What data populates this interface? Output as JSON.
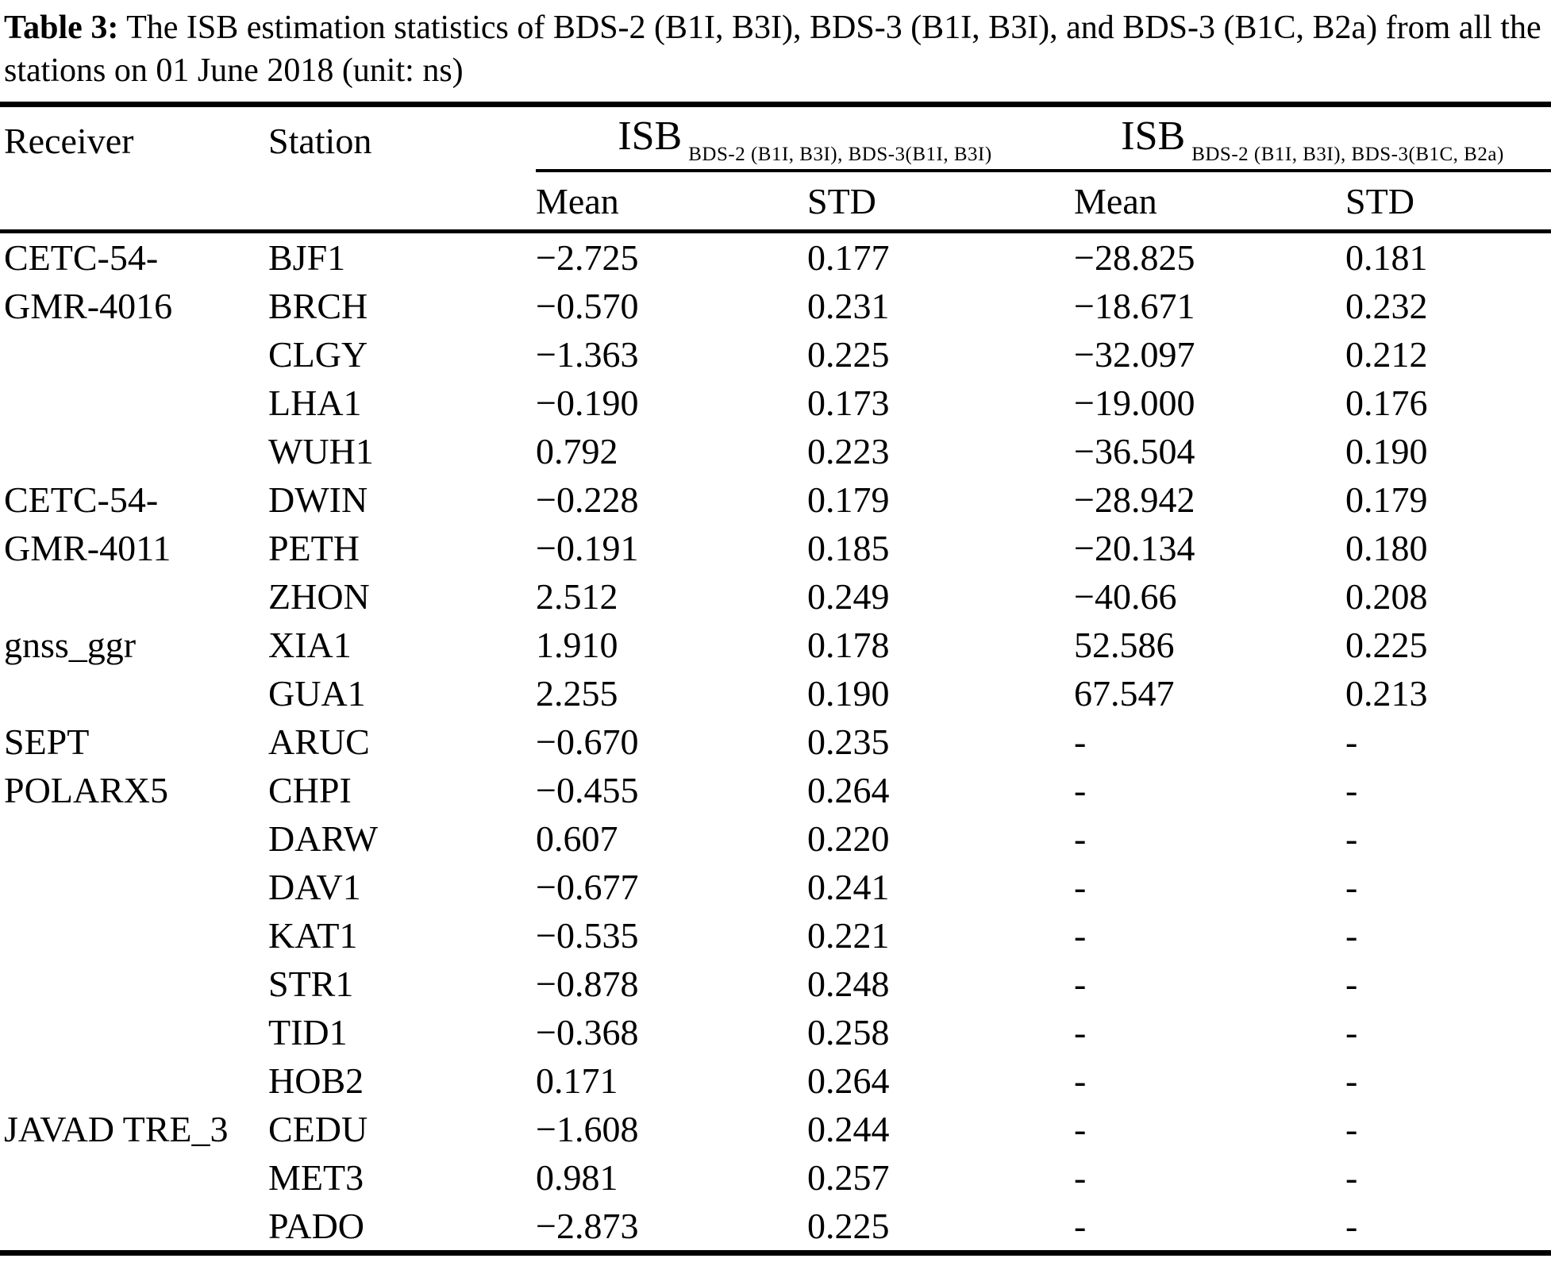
{
  "caption": {
    "label": "Table 3:",
    "text": " The ISB estimation statistics of BDS-2 (B1I, B3I), BDS-3 (B1I, B3I), and BDS-3 (B1C, B2a) from all the stations on 01 June 2018 (unit: ns)"
  },
  "table": {
    "header": {
      "receiver": "Receiver",
      "station": "Station",
      "isb1": {
        "base": "ISB",
        "subscript": "BDS-2 (B1I, B3I), BDS-3(B1I, B3I)"
      },
      "isb2": {
        "base": "ISB",
        "subscript": "BDS-2 (B1I, B3I), BDS-3(B1C, B2a)"
      },
      "mean1": "Mean",
      "std1": "STD",
      "mean2": "Mean",
      "std2": "STD"
    },
    "groups": [
      {
        "receiver": "CETC-54-GMR-4016",
        "receiver_lines": [
          "CETC-54-",
          "GMR-4016"
        ],
        "stations": [
          {
            "station": "BJF1",
            "mean1": "−2.725",
            "std1": "0.177",
            "mean2": "−28.825",
            "std2": "0.181"
          },
          {
            "station": "BRCH",
            "mean1": "−0.570",
            "std1": "0.231",
            "mean2": "−18.671",
            "std2": "0.232"
          },
          {
            "station": "CLGY",
            "mean1": "−1.363",
            "std1": "0.225",
            "mean2": "−32.097",
            "std2": "0.212"
          },
          {
            "station": "LHA1",
            "mean1": "−0.190",
            "std1": "0.173",
            "mean2": "−19.000",
            "std2": "0.176"
          },
          {
            "station": "WUH1",
            "mean1": "0.792",
            "std1": "0.223",
            "mean2": "−36.504",
            "std2": "0.190"
          }
        ]
      },
      {
        "receiver": "CETC-54-GMR-4011",
        "receiver_lines": [
          "CETC-54-",
          "GMR-4011"
        ],
        "stations": [
          {
            "station": "DWIN",
            "mean1": "−0.228",
            "std1": "0.179",
            "mean2": "−28.942",
            "std2": "0.179"
          },
          {
            "station": "PETH",
            "mean1": "−0.191",
            "std1": "0.185",
            "mean2": "−20.134",
            "std2": "0.180"
          },
          {
            "station": "ZHON",
            "mean1": "2.512",
            "std1": "0.249",
            "mean2": "−40.66",
            "std2": "0.208"
          }
        ]
      },
      {
        "receiver": "gnss_ggr",
        "receiver_lines": [
          "gnss_ggr"
        ],
        "stations": [
          {
            "station": "XIA1",
            "mean1": "1.910",
            "std1": "0.178",
            "mean2": "52.586",
            "std2": "0.225"
          },
          {
            "station": "GUA1",
            "mean1": "2.255",
            "std1": "0.190",
            "mean2": "67.547",
            "std2": "0.213"
          }
        ]
      },
      {
        "receiver": "SEPT POLARX5",
        "receiver_lines": [
          "SEPT",
          "POLARX5"
        ],
        "stations": [
          {
            "station": "ARUC",
            "mean1": "−0.670",
            "std1": "0.235",
            "mean2": "-",
            "std2": "-"
          },
          {
            "station": "CHPI",
            "mean1": "−0.455",
            "std1": "0.264",
            "mean2": "-",
            "std2": "-"
          },
          {
            "station": "DARW",
            "mean1": "0.607",
            "std1": "0.220",
            "mean2": "-",
            "std2": "-"
          },
          {
            "station": "DAV1",
            "mean1": "−0.677",
            "std1": "0.241",
            "mean2": "-",
            "std2": "-"
          },
          {
            "station": "KAT1",
            "mean1": "−0.535",
            "std1": "0.221",
            "mean2": "-",
            "std2": "-"
          },
          {
            "station": "STR1",
            "mean1": "−0.878",
            "std1": "0.248",
            "mean2": "-",
            "std2": "-"
          },
          {
            "station": "TID1",
            "mean1": "−0.368",
            "std1": "0.258",
            "mean2": "-",
            "std2": "-"
          },
          {
            "station": "HOB2",
            "mean1": "0.171",
            "std1": "0.264",
            "mean2": "-",
            "std2": "-"
          }
        ]
      },
      {
        "receiver": "JAVAD TRE_3",
        "receiver_lines": [
          "JAVAD TRE_3"
        ],
        "stations": [
          {
            "station": "CEDU",
            "mean1": "−1.608",
            "std1": "0.244",
            "mean2": "-",
            "std2": "-"
          },
          {
            "station": "MET3",
            "mean1": "0.981",
            "std1": "0.257",
            "mean2": "-",
            "std2": "-"
          },
          {
            "station": "PADO",
            "mean1": "−2.873",
            "std1": "0.225",
            "mean2": "-",
            "std2": "-"
          }
        ]
      }
    ]
  }
}
